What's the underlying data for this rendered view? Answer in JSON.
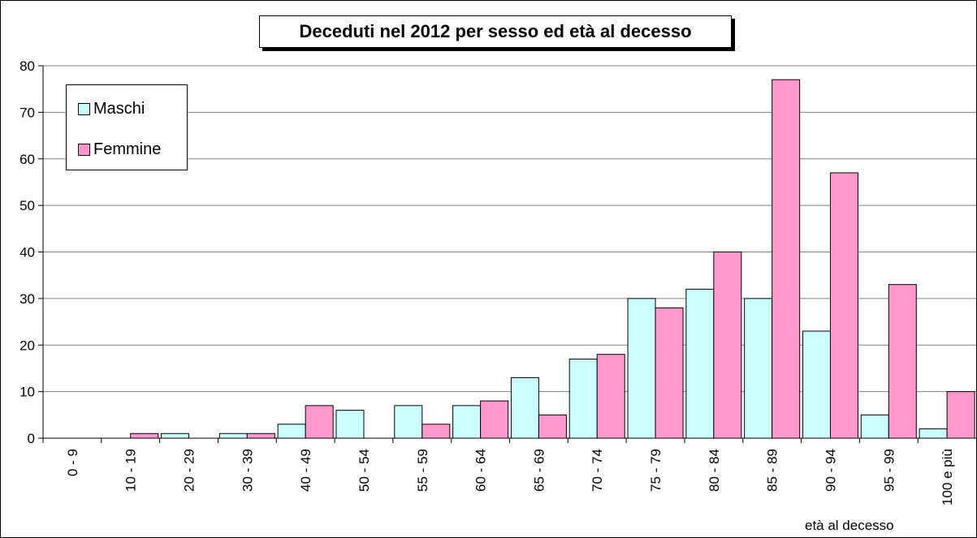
{
  "chart_data": {
    "type": "bar",
    "title": "Deceduti nel 2012 per sesso ed età al decesso",
    "xlabel": "età al decesso",
    "ylabel": "",
    "ylim": [
      0,
      80
    ],
    "yticks": [
      0,
      10,
      20,
      30,
      40,
      50,
      60,
      70,
      80
    ],
    "grid": true,
    "legend_position": "top-left",
    "categories": [
      "0 - 9",
      "10 - 19",
      "20 - 29",
      "30 - 39",
      "40 - 49",
      "50 - 54",
      "55 - 59",
      "60 - 64",
      "65 - 69",
      "70 - 74",
      "75 - 79",
      "80 - 84",
      "85 - 89",
      "90 - 94",
      "95 - 99",
      "100 e più"
    ],
    "series": [
      {
        "name": "Maschi",
        "color": "#ccffff",
        "values": [
          0,
          0,
          1,
          1,
          3,
          6,
          7,
          7,
          13,
          17,
          30,
          32,
          30,
          23,
          5,
          2
        ]
      },
      {
        "name": "Femmine",
        "color": "#ff99cc",
        "values": [
          0,
          1,
          0,
          1,
          7,
          0,
          3,
          8,
          5,
          18,
          28,
          40,
          77,
          57,
          33,
          10
        ]
      }
    ]
  }
}
